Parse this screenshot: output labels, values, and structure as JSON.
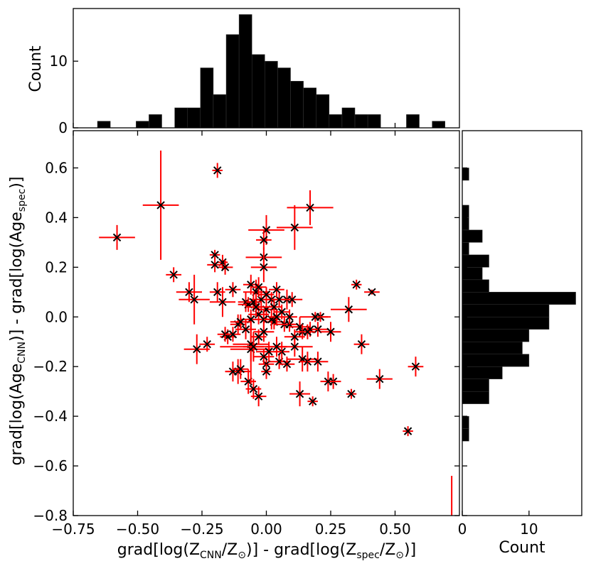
{
  "chart_data": [
    {
      "type": "scatter",
      "panel": "main",
      "xlabel": "grad[log(ZCNN/Z⊙)] - grad[log(Zspec/Z⊙)]",
      "ylabel": "grad[log(AgeCNN)] - grad[log(Agespec)]",
      "xlim": [
        -0.75,
        0.75
      ],
      "ylim": [
        -0.8,
        0.75
      ],
      "xticks": [
        -0.75,
        -0.5,
        -0.25,
        0.0,
        0.25,
        0.5
      ],
      "xtick_labels": [
        "−0.75",
        "−0.50",
        "−0.25",
        "0.00",
        "0.25",
        "0.50"
      ],
      "yticks": [
        -0.8,
        -0.6,
        -0.4,
        -0.2,
        0.0,
        0.2,
        0.4,
        0.6
      ],
      "ytick_labels": [
        "−0.8",
        "−0.6",
        "−0.4",
        "−0.2",
        "0.0",
        "0.2",
        "0.4",
        "0.6"
      ],
      "marker": "x",
      "marker_color": "#000000",
      "errorbar_color": "#ff0000",
      "points": [
        {
          "x": -0.19,
          "y": 0.59,
          "xerr": 0.02,
          "yerr": 0.03
        },
        {
          "x": -0.41,
          "y": 0.45,
          "xerr": 0.07,
          "yerr": 0.22
        },
        {
          "x": -0.58,
          "y": 0.32,
          "xerr": 0.07,
          "yerr": 0.05
        },
        {
          "x": 0.17,
          "y": 0.44,
          "xerr": 0.09,
          "yerr": 0.07
        },
        {
          "x": 0.11,
          "y": 0.36,
          "xerr": 0.07,
          "yerr": 0.09
        },
        {
          "x": 0.0,
          "y": 0.35,
          "xerr": 0.07,
          "yerr": 0.06
        },
        {
          "x": -0.01,
          "y": 0.31,
          "xerr": 0.03,
          "yerr": 0.04
        },
        {
          "x": -0.01,
          "y": 0.24,
          "xerr": 0.07,
          "yerr": 0.04
        },
        {
          "x": -0.2,
          "y": 0.25,
          "xerr": 0.02,
          "yerr": 0.02
        },
        {
          "x": -0.17,
          "y": 0.22,
          "xerr": 0.02,
          "yerr": 0.03
        },
        {
          "x": -0.16,
          "y": 0.2,
          "xerr": 0.03,
          "yerr": 0.03
        },
        {
          "x": -0.2,
          "y": 0.21,
          "xerr": 0.03,
          "yerr": 0.03
        },
        {
          "x": -0.36,
          "y": 0.17,
          "xerr": 0.03,
          "yerr": 0.03
        },
        {
          "x": -0.01,
          "y": 0.2,
          "xerr": 0.05,
          "yerr": 0.06
        },
        {
          "x": 0.35,
          "y": 0.13,
          "xerr": 0.02,
          "yerr": 0.02
        },
        {
          "x": 0.41,
          "y": 0.1,
          "xerr": 0.03,
          "yerr": 0.01
        },
        {
          "x": -0.3,
          "y": 0.1,
          "xerr": 0.05,
          "yerr": 0.04
        },
        {
          "x": -0.28,
          "y": 0.07,
          "xerr": 0.06,
          "yerr": 0.1
        },
        {
          "x": -0.19,
          "y": 0.1,
          "xerr": 0.03,
          "yerr": 0.04
        },
        {
          "x": -0.13,
          "y": 0.11,
          "xerr": 0.03,
          "yerr": 0.03
        },
        {
          "x": -0.17,
          "y": 0.06,
          "xerr": 0.05,
          "yerr": 0.06
        },
        {
          "x": -0.08,
          "y": 0.06,
          "xerr": 0.03,
          "yerr": 0.04
        },
        {
          "x": -0.06,
          "y": 0.13,
          "xerr": 0.03,
          "yerr": 0.04
        },
        {
          "x": -0.04,
          "y": 0.1,
          "xerr": 0.05,
          "yerr": 0.05
        },
        {
          "x": -0.02,
          "y": 0.07,
          "xerr": 0.04,
          "yerr": 0.05
        },
        {
          "x": 0.0,
          "y": 0.03,
          "xerr": 0.04,
          "yerr": 0.04
        },
        {
          "x": 0.02,
          "y": 0.07,
          "xerr": 0.03,
          "yerr": 0.03
        },
        {
          "x": 0.03,
          "y": 0.04,
          "xerr": 0.03,
          "yerr": 0.03
        },
        {
          "x": 0.05,
          "y": 0.07,
          "xerr": 0.03,
          "yerr": 0.03
        },
        {
          "x": 0.08,
          "y": 0.07,
          "xerr": 0.02,
          "yerr": 0.04
        },
        {
          "x": 0.06,
          "y": 0.02,
          "xerr": 0.03,
          "yerr": 0.03
        },
        {
          "x": 0.03,
          "y": -0.02,
          "xerr": 0.04,
          "yerr": 0.03
        },
        {
          "x": 0.07,
          "y": -0.03,
          "xerr": 0.04,
          "yerr": 0.03
        },
        {
          "x": 0.09,
          "y": -0.03,
          "xerr": 0.03,
          "yerr": 0.03
        },
        {
          "x": 0.13,
          "y": -0.04,
          "xerr": 0.04,
          "yerr": 0.04
        },
        {
          "x": 0.2,
          "y": -0.05,
          "xerr": 0.04,
          "yerr": 0.03
        },
        {
          "x": 0.21,
          "y": 0.0,
          "xerr": 0.03,
          "yerr": 0.02
        },
        {
          "x": 0.19,
          "y": 0.0,
          "xerr": 0.06,
          "yerr": 0.02
        },
        {
          "x": 0.32,
          "y": 0.03,
          "xerr": 0.07,
          "yerr": 0.05
        },
        {
          "x": 0.17,
          "y": -0.05,
          "xerr": 0.03,
          "yerr": 0.03
        },
        {
          "x": 0.25,
          "y": -0.06,
          "xerr": 0.04,
          "yerr": 0.04
        },
        {
          "x": 0.37,
          "y": -0.11,
          "xerr": 0.03,
          "yerr": 0.04
        },
        {
          "x": 0.11,
          "y": -0.12,
          "xerr": 0.07,
          "yerr": 0.04
        },
        {
          "x": 0.14,
          "y": -0.17,
          "xerr": 0.06,
          "yerr": 0.05
        },
        {
          "x": 0.16,
          "y": -0.18,
          "xerr": 0.03,
          "yerr": 0.04
        },
        {
          "x": 0.2,
          "y": -0.18,
          "xerr": 0.04,
          "yerr": 0.04
        },
        {
          "x": 0.05,
          "y": -0.18,
          "xerr": 0.04,
          "yerr": 0.03
        },
        {
          "x": 0.08,
          "y": -0.19,
          "xerr": 0.03,
          "yerr": 0.03
        },
        {
          "x": 0.0,
          "y": -0.19,
          "xerr": 0.03,
          "yerr": 0.03
        },
        {
          "x": 0.0,
          "y": -0.22,
          "xerr": 0.02,
          "yerr": 0.03
        },
        {
          "x": 0.26,
          "y": -0.26,
          "xerr": 0.03,
          "yerr": 0.03
        },
        {
          "x": 0.24,
          "y": -0.26,
          "xerr": 0.03,
          "yerr": 0.04
        },
        {
          "x": 0.33,
          "y": -0.31,
          "xerr": 0.02,
          "yerr": 0.02
        },
        {
          "x": 0.44,
          "y": -0.25,
          "xerr": 0.05,
          "yerr": 0.04
        },
        {
          "x": 0.58,
          "y": -0.2,
          "xerr": 0.03,
          "yerr": 0.04
        },
        {
          "x": 0.55,
          "y": -0.46,
          "xerr": 0.02,
          "yerr": 0.02
        },
        {
          "x": 0.13,
          "y": -0.31,
          "xerr": 0.04,
          "yerr": 0.05
        },
        {
          "x": 0.18,
          "y": -0.34,
          "xerr": 0.02,
          "yerr": 0.02
        },
        {
          "x": -0.05,
          "y": -0.29,
          "xerr": 0.03,
          "yerr": 0.04
        },
        {
          "x": -0.07,
          "y": -0.26,
          "xerr": 0.03,
          "yerr": 0.05
        },
        {
          "x": -0.03,
          "y": -0.32,
          "xerr": 0.03,
          "yerr": 0.04
        },
        {
          "x": -0.11,
          "y": -0.22,
          "xerr": 0.05,
          "yerr": 0.05
        },
        {
          "x": -0.13,
          "y": -0.22,
          "xerr": 0.03,
          "yerr": 0.04
        },
        {
          "x": -0.1,
          "y": -0.21,
          "xerr": 0.03,
          "yerr": 0.04
        },
        {
          "x": -0.27,
          "y": -0.13,
          "xerr": 0.05,
          "yerr": 0.06
        },
        {
          "x": -0.23,
          "y": -0.11,
          "xerr": 0.03,
          "yerr": 0.03
        },
        {
          "x": -0.15,
          "y": -0.08,
          "xerr": 0.03,
          "yerr": 0.03
        },
        {
          "x": -0.16,
          "y": -0.07,
          "xerr": 0.03,
          "yerr": 0.03
        },
        {
          "x": -0.13,
          "y": -0.07,
          "xerr": 0.03,
          "yerr": 0.03
        },
        {
          "x": -0.11,
          "y": -0.03,
          "xerr": 0.03,
          "yerr": 0.04
        },
        {
          "x": -0.05,
          "y": -0.12,
          "xerr": 0.13,
          "yerr": 0.06
        },
        {
          "x": -0.06,
          "y": -0.13,
          "xerr": 0.08,
          "yerr": 0.14
        },
        {
          "x": -0.06,
          "y": -0.11,
          "xerr": 0.07,
          "yerr": 0.07
        },
        {
          "x": -0.05,
          "y": -0.12,
          "xerr": 0.04,
          "yerr": 0.05
        },
        {
          "x": -0.03,
          "y": -0.08,
          "xerr": 0.03,
          "yerr": 0.03
        },
        {
          "x": -0.01,
          "y": -0.06,
          "xerr": 0.04,
          "yerr": 0.04
        },
        {
          "x": -0.06,
          "y": -0.01,
          "xerr": 0.04,
          "yerr": 0.04
        },
        {
          "x": -0.03,
          "y": 0.01,
          "xerr": 0.04,
          "yerr": 0.04
        },
        {
          "x": -0.01,
          "y": -0.01,
          "xerr": 0.04,
          "yerr": 0.04
        },
        {
          "x": 0.02,
          "y": -0.01,
          "xerr": 0.03,
          "yerr": 0.04
        },
        {
          "x": 0.04,
          "y": 0.0,
          "xerr": 0.03,
          "yerr": 0.03
        },
        {
          "x": -0.07,
          "y": 0.05,
          "xerr": 0.04,
          "yerr": 0.03
        },
        {
          "x": -0.05,
          "y": 0.06,
          "xerr": 0.03,
          "yerr": 0.04
        },
        {
          "x": -0.04,
          "y": 0.04,
          "xerr": 0.04,
          "yerr": 0.04
        },
        {
          "x": -0.1,
          "y": -0.02,
          "xerr": 0.04,
          "yerr": 0.03
        },
        {
          "x": -0.08,
          "y": -0.05,
          "xerr": 0.04,
          "yerr": 0.04
        },
        {
          "x": 0.04,
          "y": -0.12,
          "xerr": 0.04,
          "yerr": 0.04
        },
        {
          "x": 0.06,
          "y": -0.14,
          "xerr": 0.03,
          "yerr": 0.04
        },
        {
          "x": 0.01,
          "y": -0.14,
          "xerr": 0.05,
          "yerr": 0.04
        },
        {
          "x": -0.01,
          "y": -0.16,
          "xerr": 0.04,
          "yerr": 0.03
        },
        {
          "x": 0.11,
          "y": -0.08,
          "xerr": 0.04,
          "yerr": 0.03
        },
        {
          "x": 0.14,
          "y": -0.06,
          "xerr": 0.03,
          "yerr": 0.03
        },
        {
          "x": 0.16,
          "y": -0.06,
          "xerr": 0.03,
          "yerr": 0.03
        },
        {
          "x": 0.09,
          "y": 0.0,
          "xerr": 0.03,
          "yerr": 0.03
        },
        {
          "x": 0.1,
          "y": 0.07,
          "xerr": 0.04,
          "yerr": 0.03
        },
        {
          "x": 0.04,
          "y": 0.11,
          "xerr": 0.03,
          "yerr": 0.03
        },
        {
          "x": 0.0,
          "y": 0.09,
          "xerr": 0.03,
          "yerr": 0.03
        },
        {
          "x": -0.03,
          "y": 0.12,
          "xerr": 0.03,
          "yerr": 0.04
        }
      ],
      "extra_marks": [
        {
          "kind": "vertical-error-line",
          "x": 0.72,
          "y_from": -0.8,
          "y_to": -0.64
        }
      ]
    },
    {
      "type": "bar",
      "panel": "top-histogram",
      "orientation": "vertical",
      "ylabel": "Count",
      "xlim": [
        -0.75,
        0.75
      ],
      "ylim": [
        0,
        17.9
      ],
      "yticks": [
        0,
        10
      ],
      "ytick_labels": [
        "0",
        "10"
      ],
      "bar_color": "#000000",
      "bin_edges": [
        -0.806,
        -0.756,
        -0.706,
        -0.656,
        -0.606,
        -0.556,
        -0.506,
        -0.456,
        -0.406,
        -0.356,
        -0.306,
        -0.256,
        -0.206,
        -0.156,
        -0.106,
        -0.056,
        -0.006,
        0.044,
        0.094,
        0.144,
        0.194,
        0.244,
        0.294,
        0.344,
        0.394,
        0.444,
        0.494,
        0.544,
        0.594,
        0.644,
        0.694,
        0.744
      ],
      "counts": [
        0,
        0,
        0,
        1,
        0,
        0,
        1,
        2,
        0,
        3,
        3,
        9,
        5,
        14,
        17,
        11,
        10,
        9,
        7,
        6,
        5,
        2,
        3,
        2,
        2,
        0,
        0,
        2,
        0,
        1,
        0
      ]
    },
    {
      "type": "bar",
      "panel": "right-histogram",
      "orientation": "horizontal",
      "xlabel": "Count",
      "xlim": [
        0,
        17.9
      ],
      "ylim": [
        -0.8,
        0.75
      ],
      "xticks": [
        0,
        10
      ],
      "xtick_labels": [
        "0",
        "10"
      ],
      "bar_color": "#000000",
      "bin_edges": [
        -0.8,
        -0.75,
        -0.7,
        -0.65,
        -0.6,
        -0.55,
        -0.5,
        -0.45,
        -0.4,
        -0.35,
        -0.3,
        -0.25,
        -0.2,
        -0.15,
        -0.1,
        -0.05,
        0.0,
        0.05,
        0.1,
        0.15,
        0.2,
        0.25,
        0.3,
        0.35,
        0.4,
        0.45,
        0.5,
        0.55,
        0.6,
        0.65,
        0.7
      ],
      "counts": [
        0,
        0,
        0,
        0,
        0,
        0,
        1,
        1,
        0,
        4,
        4,
        6,
        10,
        9,
        10,
        13,
        13,
        17,
        4,
        3,
        4,
        1,
        3,
        1,
        1,
        0,
        0,
        1,
        0,
        0
      ]
    }
  ]
}
